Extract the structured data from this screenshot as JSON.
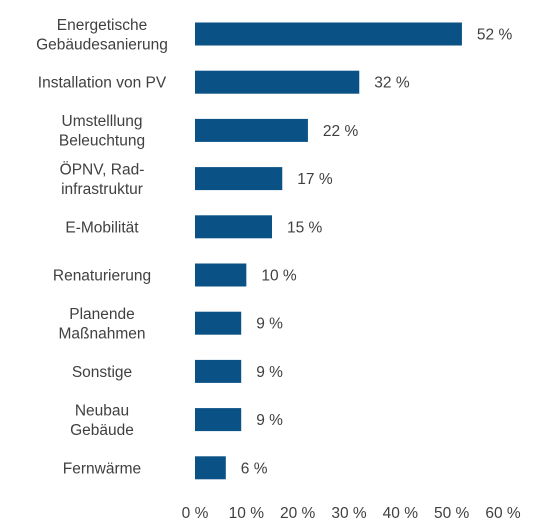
{
  "chart_data": {
    "type": "bar",
    "orientation": "horizontal",
    "title": "",
    "xlabel": "",
    "ylabel": "",
    "categories": [
      [
        "Energetische",
        "Gebäudesanierung"
      ],
      [
        "Installation von PV"
      ],
      [
        "Umstelllung",
        "Beleuchtung"
      ],
      [
        "ÖPNV, Rad-",
        "infrastruktur"
      ],
      [
        "E-Mobilität"
      ],
      [
        "Renaturierung"
      ],
      [
        "Planende",
        "Maßnahmen"
      ],
      [
        "Sonstige"
      ],
      [
        "Neubau",
        "Gebäude"
      ],
      [
        "Fernwärme"
      ]
    ],
    "values": [
      52,
      32,
      22,
      17,
      15,
      10,
      9,
      9,
      9,
      6
    ],
    "value_labels": [
      "52 %",
      "32 %",
      "22 %",
      "17 %",
      "15 %",
      "10 %",
      "9 %",
      "9 %",
      "9 %",
      "6 %"
    ],
    "xticks": [
      0,
      10,
      20,
      30,
      40,
      50,
      60
    ],
    "xtick_labels": [
      "0 %",
      "10 %",
      "20 %",
      "30 %",
      "40 %",
      "50 %",
      "60 %"
    ],
    "xlim": [
      0,
      60
    ],
    "grid": false,
    "legend": "none",
    "bar_color": "#0a5286",
    "text_color": "#404040"
  }
}
